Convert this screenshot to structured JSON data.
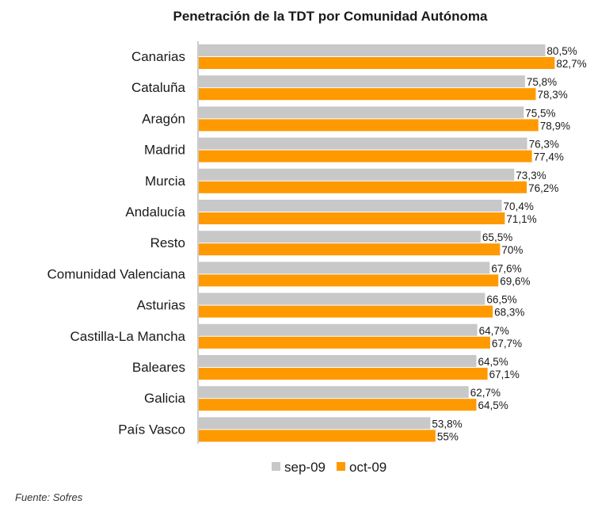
{
  "chart_data": {
    "type": "bar",
    "orientation": "horizontal",
    "title": "Penetración de la TDT por Comunidad Autónoma",
    "categories": [
      "Canarias",
      "Cataluña",
      "Aragón",
      "Madrid",
      "Murcia",
      "Andalucía",
      "Resto",
      "Comunidad Valenciana",
      "Asturias",
      "Castilla-La Mancha",
      "Baleares",
      "Galicia",
      "País Vasco"
    ],
    "series": [
      {
        "name": "sep-09",
        "color": "#c8c8c8",
        "values": [
          80.5,
          75.8,
          75.5,
          76.3,
          73.3,
          70.4,
          65.5,
          67.6,
          66.5,
          64.7,
          64.5,
          62.7,
          53.8
        ],
        "labels": [
          "80,5%",
          "75,8%",
          "75,5%",
          "76,3%",
          "73,3%",
          "70,4%",
          "65,5%",
          "67,6%",
          "66,5%",
          "64,7%",
          "64,5%",
          "62,7%",
          "53,8%"
        ]
      },
      {
        "name": "oct-09",
        "color": "#ff9900",
        "values": [
          82.7,
          78.3,
          78.9,
          77.4,
          76.2,
          71.1,
          70,
          69.6,
          68.3,
          67.7,
          67.1,
          64.5,
          55
        ],
        "labels": [
          "82,7%",
          "78,3%",
          "78,9%",
          "77,4%",
          "76,2%",
          "71,1%",
          "70%",
          "69,6%",
          "68,3%",
          "67,7%",
          "67,1%",
          "64,5%",
          "55%"
        ]
      }
    ],
    "xlim": [
      0,
      100
    ],
    "grid": false,
    "legend": "bottom"
  },
  "source": "Fuente: Sofres"
}
